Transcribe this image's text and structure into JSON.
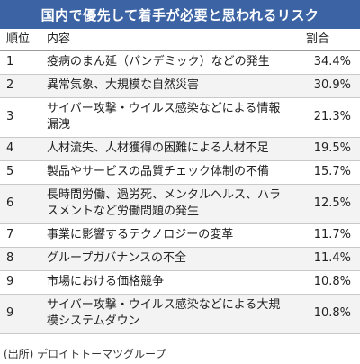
{
  "title": "国内で優先して着手が必要と思われるリスク",
  "source": "(出所) デロイトトーマツグループ",
  "chart_data": {
    "type": "table",
    "columns": [
      "順位",
      "内容",
      "割合"
    ],
    "rows": [
      {
        "rank": "1",
        "content": "疫病のまん延（パンデミック）などの発生",
        "pct": "34.4%"
      },
      {
        "rank": "2",
        "content": "異常気象、大規模な自然災害",
        "pct": "30.9%"
      },
      {
        "rank": "3",
        "content": "サイバー攻撃・ウイルス感染などによる情報漏洩",
        "pct": "21.3%"
      },
      {
        "rank": "4",
        "content": "人材流失、人材獲得の困難による人材不足",
        "pct": "19.5%"
      },
      {
        "rank": "5",
        "content": "製品やサービスの品質チェック体制の不備",
        "pct": "15.7%"
      },
      {
        "rank": "6",
        "content": "長時間労働、過労死、メンタルヘルス、ハラスメントなど労働問題の発生",
        "pct": "12.5%"
      },
      {
        "rank": "7",
        "content": "事業に影響するテクノロジーの変革",
        "pct": "11.7%"
      },
      {
        "rank": "8",
        "content": "グループガバナンスの不全",
        "pct": "11.4%"
      },
      {
        "rank": "9",
        "content": "市場における価格競争",
        "pct": "10.8%"
      },
      {
        "rank": "9",
        "content": "サイバー攻撃・ウイルス感染などによる大規模システムダウン",
        "pct": "10.8%"
      }
    ]
  }
}
